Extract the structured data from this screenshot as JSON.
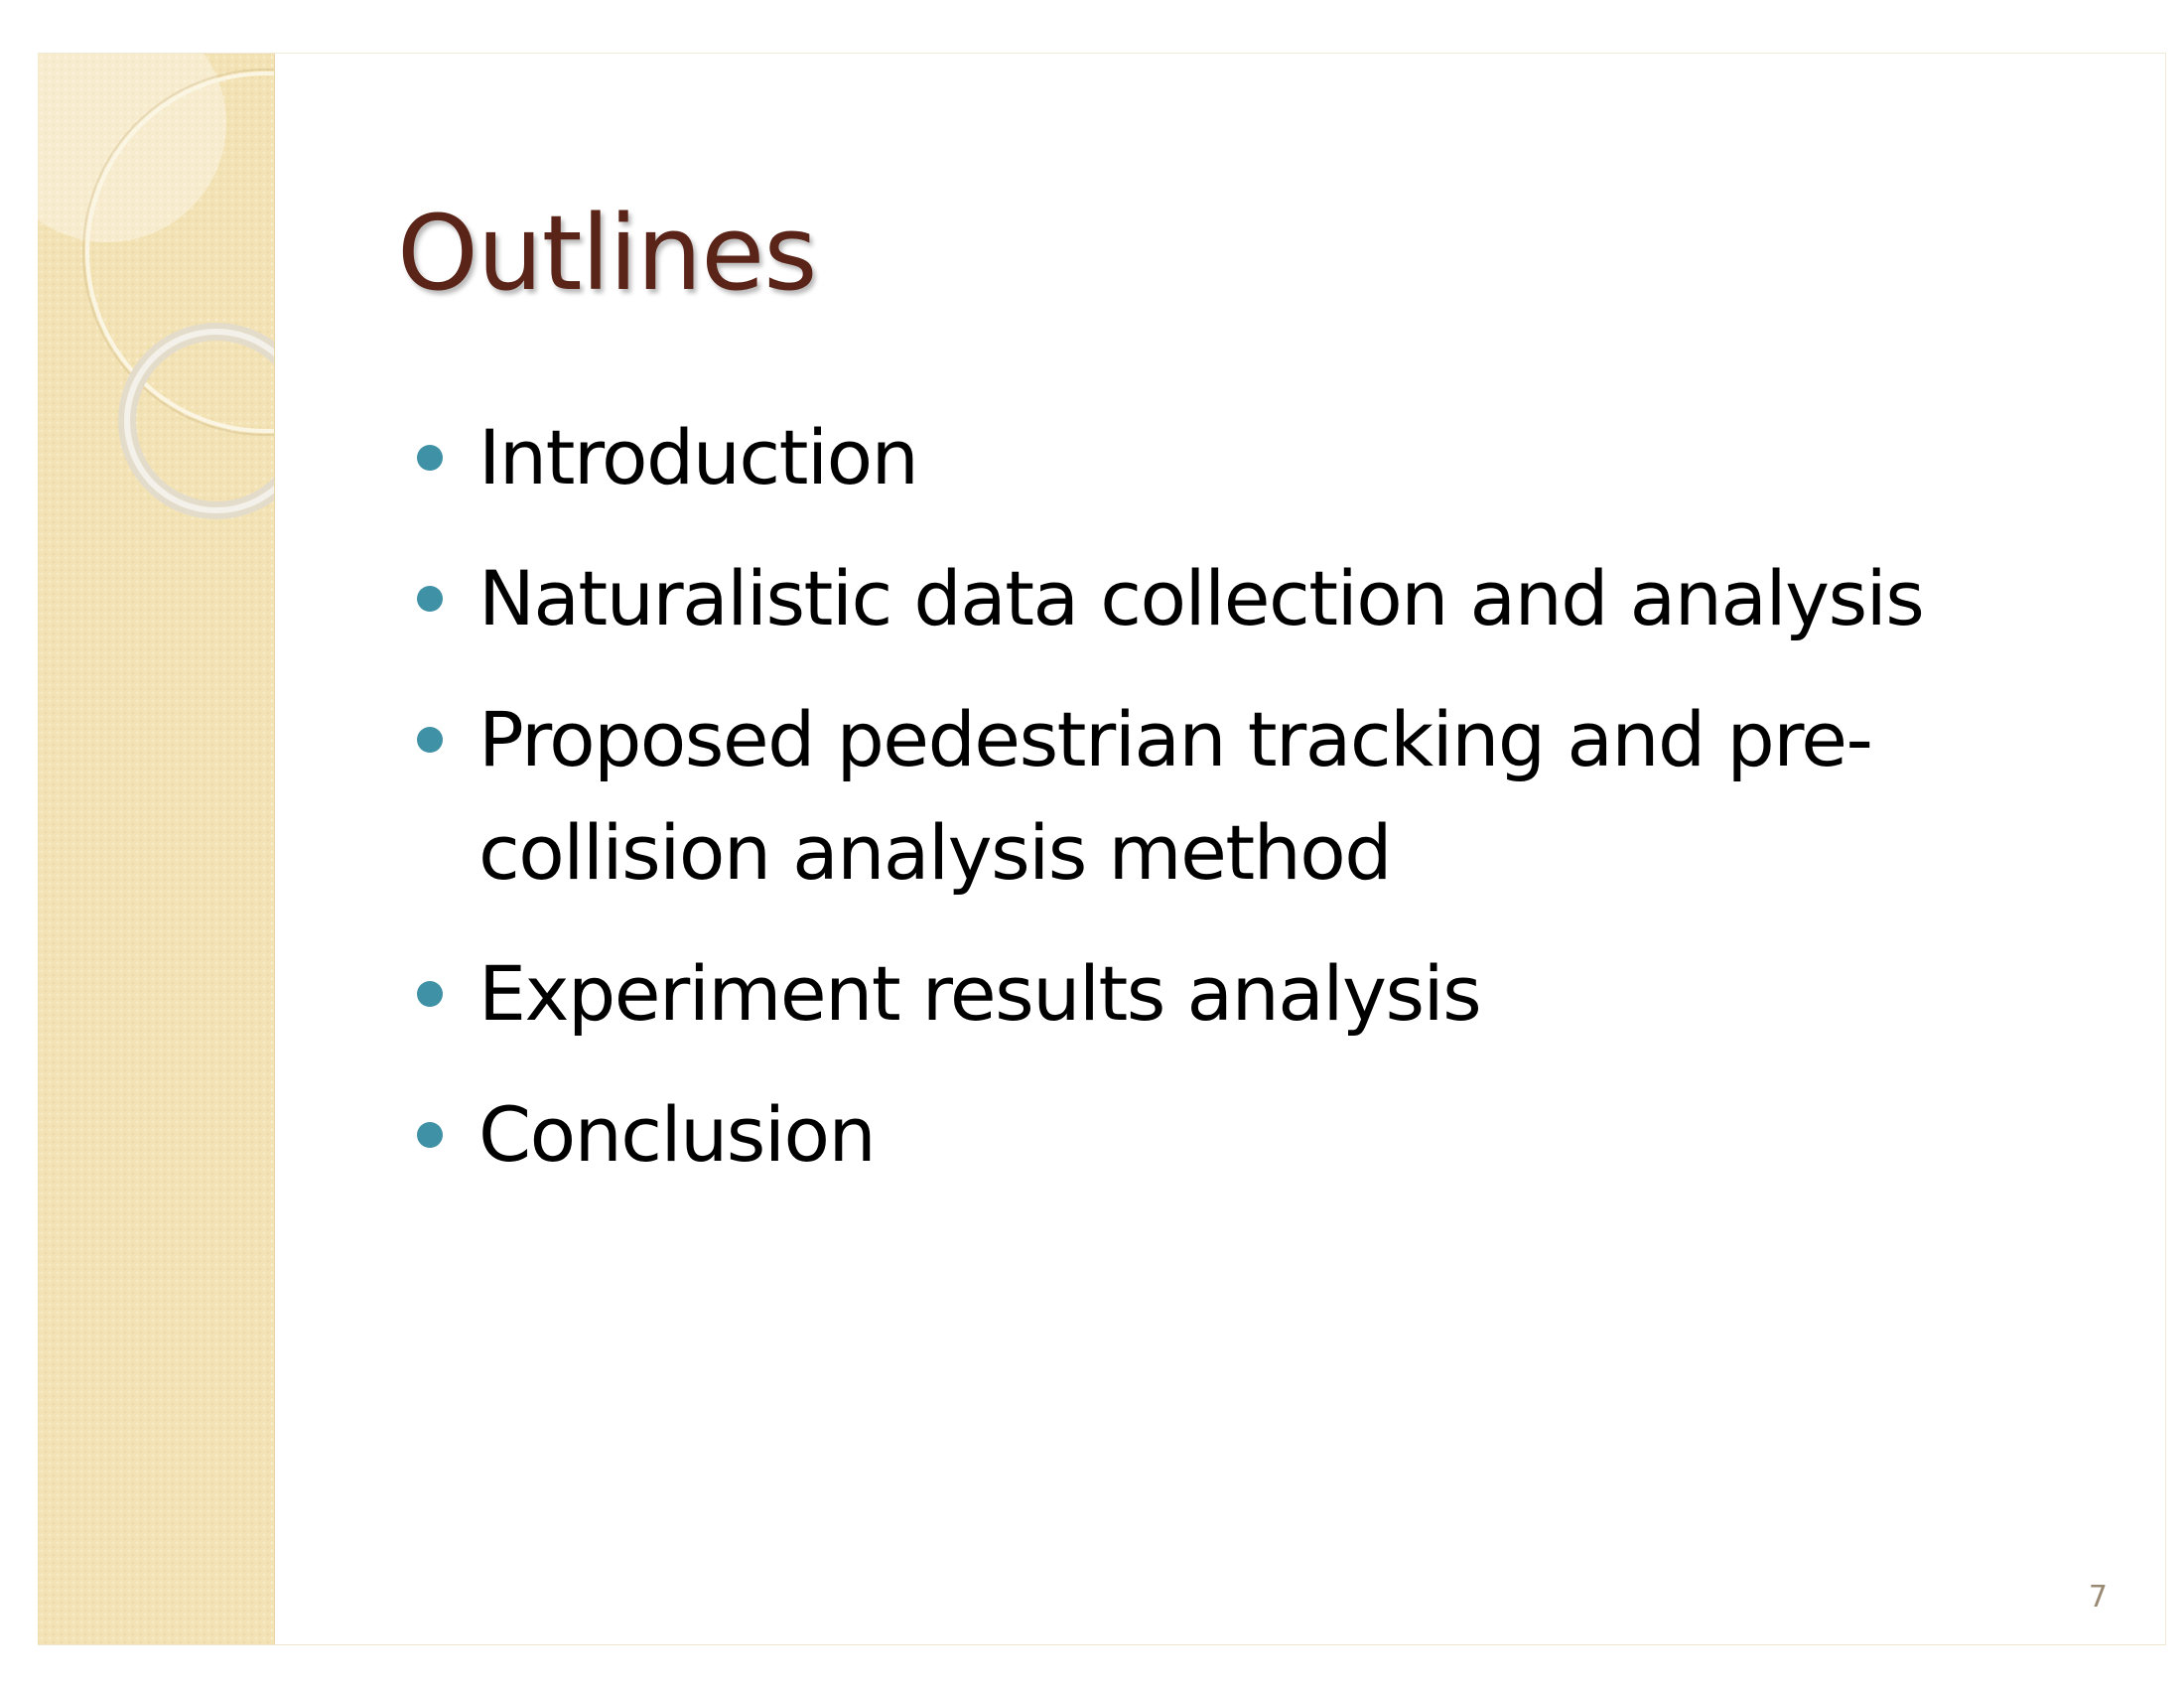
{
  "slide": {
    "title": "Outlines",
    "bullets": [
      {
        "text": "Introduction",
        "icon": "bullet-dot-icon"
      },
      {
        "text": "Naturalistic data collection and analysis",
        "icon": "bullet-dot-icon"
      },
      {
        "text": "Proposed pedestrian tracking and pre-collision analysis method",
        "icon": "bullet-dot-icon"
      },
      {
        "text": "Experiment results analysis",
        "icon": "bullet-dot-icon"
      },
      {
        "text": "Conclusion",
        "icon": "bullet-dot-icon"
      }
    ],
    "page_number": "7"
  },
  "colors": {
    "title": "#5a2418",
    "bullet": "#3f91a6",
    "band": "#f3e2b4",
    "page_number": "#9a8a74"
  }
}
